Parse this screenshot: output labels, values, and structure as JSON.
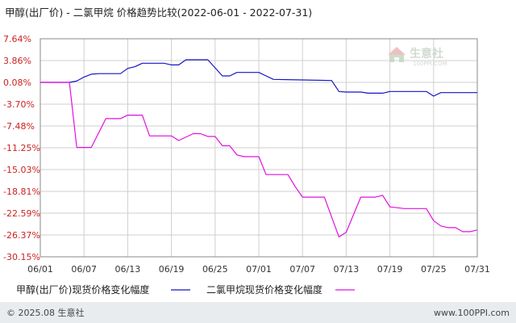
{
  "title": "甲醇(出厂价) - 二氯甲烷 价格趋势比较(2022-06-01 - 2022-07-31)",
  "watermark": {
    "brand": "生意社",
    "url": "100PPI.COM"
  },
  "footer": {
    "left": "© 2025.08 生意社",
    "right": "www.100PPI.com"
  },
  "colors": {
    "series1": "#1515c8",
    "series2": "#e010e0",
    "grid": "#cfcfcf",
    "frame": "#888888"
  },
  "chart_data": {
    "type": "line",
    "x_ticks": [
      "06/01",
      "06/07",
      "06/13",
      "06/19",
      "06/25",
      "07/01",
      "07/07",
      "07/13",
      "07/19",
      "07/25",
      "07/31"
    ],
    "y_ticks": [
      "7.64%",
      "3.86%",
      "0.08%",
      "-3.70%",
      "-7.48%",
      "-11.25%",
      "-15.03%",
      "-18.81%",
      "-22.59%",
      "-26.37%",
      "-30.15%"
    ],
    "ylim": [
      -30.15,
      7.64
    ],
    "xlim": [
      "2022-06-01",
      "2022-07-31"
    ],
    "grid": true,
    "legend_position": "bottom",
    "series": [
      {
        "name": "甲醇(出厂价)现货价格变化幅度",
        "color": "#1515c8",
        "points": [
          [
            "2022-06-01",
            0.08
          ],
          [
            "2022-06-05",
            0.08
          ],
          [
            "2022-06-06",
            0.3
          ],
          [
            "2022-06-07",
            1.0
          ],
          [
            "2022-06-08",
            1.5
          ],
          [
            "2022-06-09",
            1.6
          ],
          [
            "2022-06-10",
            1.6
          ],
          [
            "2022-06-12",
            1.6
          ],
          [
            "2022-06-13",
            2.5
          ],
          [
            "2022-06-14",
            2.8
          ],
          [
            "2022-06-15",
            3.4
          ],
          [
            "2022-06-18",
            3.4
          ],
          [
            "2022-06-19",
            3.1
          ],
          [
            "2022-06-20",
            3.1
          ],
          [
            "2022-06-21",
            4.0
          ],
          [
            "2022-06-24",
            4.0
          ],
          [
            "2022-06-25",
            2.6
          ],
          [
            "2022-06-26",
            1.2
          ],
          [
            "2022-06-27",
            1.2
          ],
          [
            "2022-06-28",
            1.8
          ],
          [
            "2022-06-30",
            1.8
          ],
          [
            "2022-07-01",
            1.8
          ],
          [
            "2022-07-02",
            1.2
          ],
          [
            "2022-07-03",
            0.6
          ],
          [
            "2022-07-07",
            0.5
          ],
          [
            "2022-07-11",
            0.4
          ],
          [
            "2022-07-12",
            -1.5
          ],
          [
            "2022-07-13",
            -1.6
          ],
          [
            "2022-07-15",
            -1.6
          ],
          [
            "2022-07-16",
            -1.8
          ],
          [
            "2022-07-18",
            -1.8
          ],
          [
            "2022-07-19",
            -1.5
          ],
          [
            "2022-07-24",
            -1.5
          ],
          [
            "2022-07-25",
            -2.3
          ],
          [
            "2022-07-26",
            -1.7
          ],
          [
            "2022-07-31",
            -1.7
          ]
        ]
      },
      {
        "name": "二氯甲烷现货价格变化幅度",
        "color": "#e010e0",
        "points": [
          [
            "2022-06-01",
            0.08
          ],
          [
            "2022-06-05",
            0.08
          ],
          [
            "2022-06-06",
            -11.2
          ],
          [
            "2022-06-07",
            -11.2
          ],
          [
            "2022-06-08",
            -11.2
          ],
          [
            "2022-06-10",
            -6.2
          ],
          [
            "2022-06-11",
            -6.2
          ],
          [
            "2022-06-12",
            -6.2
          ],
          [
            "2022-06-13",
            -5.6
          ],
          [
            "2022-06-14",
            -5.6
          ],
          [
            "2022-06-15",
            -5.6
          ],
          [
            "2022-06-16",
            -9.2
          ],
          [
            "2022-06-19",
            -9.2
          ],
          [
            "2022-06-20",
            -10.0
          ],
          [
            "2022-06-22",
            -8.8
          ],
          [
            "2022-06-23",
            -8.8
          ],
          [
            "2022-06-24",
            -9.3
          ],
          [
            "2022-06-25",
            -9.3
          ],
          [
            "2022-06-26",
            -10.9
          ],
          [
            "2022-06-27",
            -10.9
          ],
          [
            "2022-06-28",
            -12.5
          ],
          [
            "2022-06-29",
            -12.8
          ],
          [
            "2022-06-30",
            -12.8
          ],
          [
            "2022-07-01",
            -12.8
          ],
          [
            "2022-07-02",
            -15.9
          ],
          [
            "2022-07-03",
            -15.9
          ],
          [
            "2022-07-04",
            -15.9
          ],
          [
            "2022-07-05",
            -15.9
          ],
          [
            "2022-07-06",
            -18.0
          ],
          [
            "2022-07-07",
            -19.8
          ],
          [
            "2022-07-10",
            -19.8
          ],
          [
            "2022-07-12",
            -26.7
          ],
          [
            "2022-07-13",
            -25.9
          ],
          [
            "2022-07-15",
            -19.8
          ],
          [
            "2022-07-17",
            -19.8
          ],
          [
            "2022-07-18",
            -19.5
          ],
          [
            "2022-07-19",
            -21.5
          ],
          [
            "2022-07-21",
            -21.8
          ],
          [
            "2022-07-24",
            -21.8
          ],
          [
            "2022-07-25",
            -23.9
          ],
          [
            "2022-07-26",
            -24.8
          ],
          [
            "2022-07-27",
            -25.1
          ],
          [
            "2022-07-28",
            -25.1
          ],
          [
            "2022-07-29",
            -25.8
          ],
          [
            "2022-07-30",
            -25.8
          ],
          [
            "2022-07-31",
            -25.5
          ]
        ]
      }
    ]
  }
}
